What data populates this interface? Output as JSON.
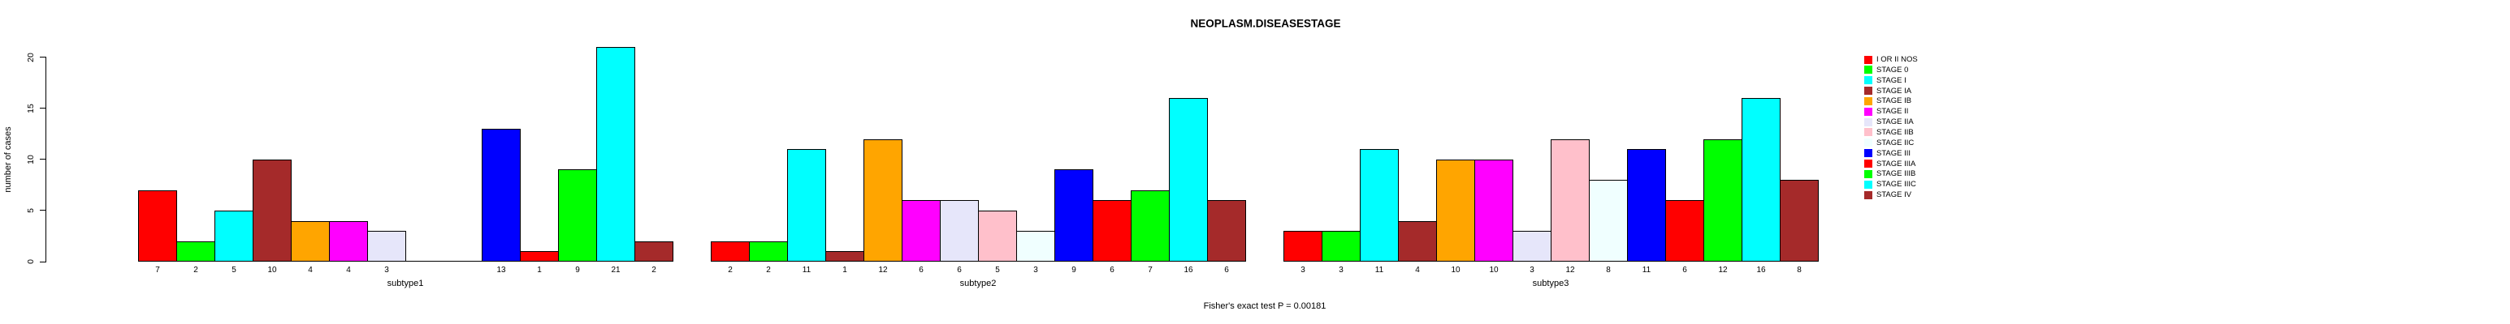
{
  "title": "NEOPLASM.DISEASESTAGE",
  "y_axis": {
    "label": "number of cases",
    "ticks": [
      "0",
      "5",
      "10",
      "15",
      "20"
    ]
  },
  "caption": "Fisher's exact test P = 0.00181",
  "group_labels": [
    "subtype1",
    "subtype2",
    "subtype3"
  ],
  "legend": {
    "items": [
      {
        "label": "I OR II NOS",
        "color": "#FF0000"
      },
      {
        "label": "STAGE 0",
        "color": "#00FF00"
      },
      {
        "label": "STAGE I",
        "color": "#00FFFF"
      },
      {
        "label": "STAGE IA",
        "color": "#A52A2A"
      },
      {
        "label": "STAGE IB",
        "color": "#FFA500"
      },
      {
        "label": "STAGE II",
        "color": "#FF00FF"
      },
      {
        "label": "STAGE IIA",
        "color": "#E6E6FA"
      },
      {
        "label": "STAGE IIB",
        "color": "#FFC0CB"
      },
      {
        "label": "STAGE IIC",
        "color": "#F0FFFF"
      },
      {
        "label": "STAGE III",
        "color": "#0000FF"
      },
      {
        "label": "STAGE IIIA",
        "color": "#FF0000"
      },
      {
        "label": "STAGE IIIB",
        "color": "#00FF00"
      },
      {
        "label": "STAGE IIIC",
        "color": "#00FFFF"
      },
      {
        "label": "STAGE IV",
        "color": "#A52A2A"
      }
    ]
  },
  "chart_data": {
    "type": "bar",
    "title": "NEOPLASM.DISEASESTAGE",
    "xlabel": "",
    "ylabel": "number of cases",
    "ylim": [
      0,
      21
    ],
    "y_ticks": [
      0,
      5,
      10,
      15,
      20
    ],
    "grid": false,
    "legend_position": "right",
    "bar_value_labels_shown": true,
    "annotation": "Fisher's exact test P = 0.00181",
    "categories": [
      "I OR II NOS",
      "STAGE 0",
      "STAGE I",
      "STAGE IA",
      "STAGE IB",
      "STAGE II",
      "STAGE IIA",
      "STAGE IIB",
      "STAGE IIC",
      "STAGE III",
      "STAGE IIIA",
      "STAGE IIIB",
      "STAGE IIIC",
      "STAGE IV"
    ],
    "colors": [
      "#FF0000",
      "#00FF00",
      "#00FFFF",
      "#A52A2A",
      "#FFA500",
      "#FF00FF",
      "#E6E6FA",
      "#FFC0CB",
      "#F0FFFF",
      "#0000FF",
      "#FF0000",
      "#00FF00",
      "#00FFFF",
      "#A52A2A"
    ],
    "series": [
      {
        "name": "subtype1",
        "values": [
          7,
          2,
          5,
          10,
          4,
          4,
          3,
          0,
          0,
          13,
          1,
          9,
          21,
          2
        ]
      },
      {
        "name": "subtype2",
        "values": [
          2,
          2,
          11,
          1,
          12,
          6,
          6,
          5,
          3,
          9,
          6,
          7,
          16,
          6
        ]
      },
      {
        "name": "subtype3",
        "values": [
          3,
          3,
          11,
          4,
          10,
          10,
          3,
          12,
          8,
          11,
          6,
          12,
          16,
          8
        ]
      }
    ]
  }
}
